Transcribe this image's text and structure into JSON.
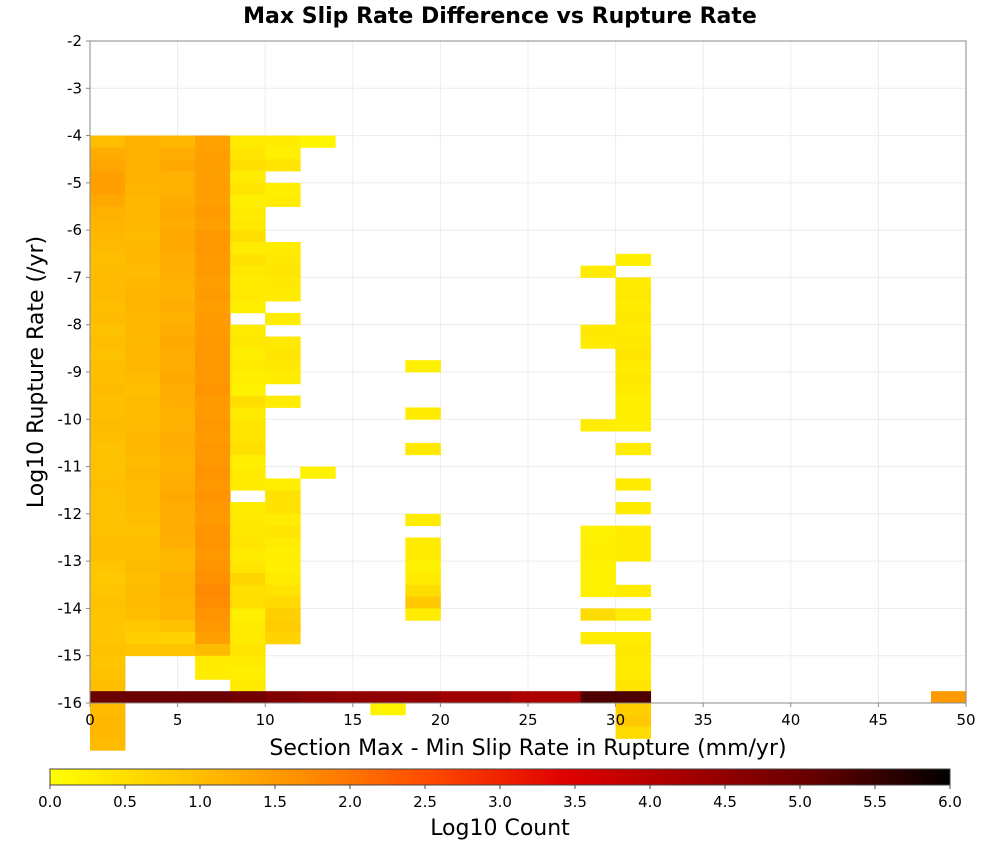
{
  "chart_data": {
    "type": "heatmap",
    "title": "Max Slip Rate Difference vs Rupture Rate",
    "xlabel": "Section Max - Min Slip Rate in Rupture (mm/yr)",
    "ylabel": "Log10 Rupture Rate (/yr)",
    "xlim": [
      0,
      50
    ],
    "ylim": [
      -16,
      -2
    ],
    "x_ticks": [
      "0",
      "5",
      "10",
      "15",
      "20",
      "25",
      "30",
      "35",
      "40",
      "45",
      "50"
    ],
    "y_ticks": [
      "-2",
      "-3",
      "-4",
      "-5",
      "-6",
      "-7",
      "-8",
      "-9",
      "-10",
      "-11",
      "-12",
      "-13",
      "-14",
      "-15",
      "-16"
    ],
    "grid": true,
    "x_bin_width": 2,
    "y_bin_height": 0.25,
    "colorbar": {
      "label": "Log10 Count",
      "range": [
        0,
        6
      ],
      "ticks": [
        "0.0",
        "0.5",
        "1.0",
        "1.5",
        "2.0",
        "2.5",
        "3.0",
        "3.5",
        "4.0",
        "4.5",
        "5.0",
        "5.5",
        "6.0"
      ],
      "colors": [
        "#ffff00",
        "#ffc800",
        "#ff8c00",
        "#ff4600",
        "#e00000",
        "#a00000",
        "#600000",
        "#000000"
      ]
    },
    "col_x": [
      0,
      2,
      4,
      6,
      8,
      10,
      12,
      16,
      18,
      28,
      30,
      48
    ],
    "col_values": [
      [
        1.0,
        1.25,
        1.35,
        1.45,
        1.45,
        1.3,
        1.2,
        1.15,
        1.1,
        1.05,
        1.0,
        1.05,
        1.05,
        1.05,
        1.0,
        1.05,
        0.95,
        1.0,
        0.95,
        1.0,
        1.0,
        1.05,
        1.0,
        1.0,
        1.05,
        1.0,
        0.95,
        0.95,
        0.95,
        1.0,
        0.95,
        0.95,
        0.95,
        0.95,
        1.0,
        1.0,
        0.9,
        0.85,
        0.9,
        0.95,
        0.9,
        0.9,
        0.9,
        0.95,
        0.9,
        0.95,
        1.0,
        1.0,
        1.05,
        1.1,
        1.1,
        1.05
      ],
      [
        1.2,
        1.2,
        1.2,
        1.2,
        1.15,
        1.1,
        1.1,
        1.1,
        1.05,
        1.1,
        1.1,
        1.05,
        1.1,
        1.15,
        1.15,
        1.1,
        1.1,
        1.1,
        1.1,
        1.1,
        1.05,
        1.0,
        1.05,
        1.05,
        1.05,
        1.1,
        1.1,
        1.05,
        1.1,
        1.05,
        1.05,
        1.05,
        1.0,
        0.95,
        1.0,
        1.0,
        1.05,
        1.0,
        1.05,
        1.05,
        1.0,
        0.85,
        0.75,
        0.9,
        null,
        null,
        null,
        null,
        null,
        null,
        null,
        null
      ],
      [
        1.1,
        1.25,
        1.3,
        1.2,
        1.2,
        1.25,
        1.3,
        1.25,
        1.3,
        1.3,
        1.25,
        1.25,
        1.2,
        1.2,
        1.25,
        1.2,
        1.25,
        1.3,
        1.25,
        1.25,
        1.3,
        1.25,
        1.25,
        1.2,
        1.2,
        1.25,
        1.25,
        1.2,
        1.2,
        1.25,
        1.3,
        1.25,
        1.25,
        1.25,
        1.2,
        1.1,
        1.1,
        1.2,
        1.2,
        1.15,
        1.15,
        0.95,
        0.7,
        0.9,
        null,
        null,
        null,
        null,
        null,
        null,
        null,
        null
      ],
      [
        1.4,
        1.45,
        1.45,
        1.45,
        1.45,
        1.45,
        1.5,
        1.45,
        1.55,
        1.55,
        1.5,
        1.5,
        1.45,
        1.5,
        1.45,
        1.5,
        1.5,
        1.55,
        1.55,
        1.55,
        1.55,
        1.6,
        1.5,
        1.5,
        1.55,
        1.5,
        1.55,
        1.55,
        1.6,
        1.55,
        1.6,
        1.55,
        1.5,
        1.6,
        1.6,
        1.55,
        1.6,
        1.65,
        1.75,
        1.7,
        1.6,
        1.55,
        1.45,
        1.05,
        0.3,
        0.3,
        null,
        null,
        null,
        null,
        null,
        null
      ],
      [
        0.3,
        0.4,
        0.5,
        0.3,
        0.4,
        0.25,
        0.3,
        0.35,
        0.5,
        0.3,
        0.45,
        0.35,
        0.3,
        0.35,
        0.25,
        null,
        0.3,
        0.35,
        0.25,
        0.3,
        0.25,
        0.2,
        0.5,
        0.3,
        0.4,
        0.4,
        0.5,
        0.25,
        0.3,
        0.3,
        null,
        0.3,
        0.35,
        0.35,
        0.4,
        0.3,
        0.4,
        0.65,
        0.5,
        0.5,
        0.25,
        0.3,
        0.3,
        0.4,
        0.3,
        0.25,
        0.3,
        null,
        null,
        null,
        null,
        null
      ],
      [
        0.3,
        0.25,
        0.4,
        null,
        0.25,
        0.3,
        null,
        null,
        null,
        0.3,
        0.35,
        0.4,
        0.35,
        0.3,
        null,
        0.3,
        null,
        0.35,
        0.4,
        0.35,
        0.3,
        null,
        0.3,
        null,
        null,
        null,
        null,
        null,
        null,
        0.25,
        0.45,
        0.45,
        0.3,
        0.4,
        0.3,
        0.25,
        0.25,
        0.3,
        0.45,
        0.6,
        0.75,
        0.8,
        0.7,
        null,
        null,
        null,
        null,
        null,
        null,
        null,
        null,
        null
      ],
      [
        0.15,
        null,
        null,
        null,
        null,
        null,
        null,
        null,
        null,
        null,
        null,
        null,
        null,
        null,
        null,
        null,
        null,
        null,
        null,
        null,
        null,
        null,
        null,
        null,
        null,
        null,
        null,
        null,
        0.2,
        null,
        null,
        null,
        null,
        null,
        null,
        null,
        null,
        null,
        null,
        null,
        null,
        null,
        null,
        null,
        null,
        null,
        null,
        null,
        null,
        null,
        null,
        null
      ],
      [
        null,
        null,
        null,
        null,
        null,
        null,
        null,
        null,
        null,
        null,
        null,
        null,
        null,
        null,
        null,
        null,
        null,
        null,
        null,
        null,
        null,
        null,
        null,
        null,
        null,
        null,
        null,
        null,
        null,
        null,
        null,
        null,
        null,
        null,
        null,
        null,
        null,
        null,
        null,
        null,
        null,
        null,
        null,
        null,
        null,
        null,
        null,
        null,
        0.15,
        null,
        null,
        null
      ],
      [
        null,
        null,
        null,
        null,
        null,
        null,
        null,
        null,
        null,
        null,
        null,
        null,
        null,
        null,
        null,
        null,
        null,
        null,
        null,
        0.25,
        null,
        null,
        null,
        0.3,
        null,
        null,
        0.35,
        null,
        null,
        null,
        null,
        null,
        0.3,
        null,
        0.3,
        0.3,
        0.2,
        0.3,
        0.55,
        0.85,
        0.3,
        null,
        null,
        null,
        null,
        null,
        null,
        null,
        null,
        null,
        null,
        null
      ],
      [
        null,
        null,
        null,
        null,
        null,
        null,
        null,
        null,
        null,
        null,
        null,
        0.3,
        null,
        null,
        null,
        null,
        0.35,
        0.3,
        null,
        null,
        null,
        null,
        null,
        null,
        0.3,
        null,
        null,
        null,
        null,
        null,
        null,
        null,
        null,
        0.2,
        0.25,
        0.25,
        0.2,
        0.2,
        0.2,
        null,
        0.55,
        null,
        0.3,
        null,
        null,
        null,
        null,
        null,
        null,
        null,
        null,
        null
      ],
      [
        null,
        null,
        null,
        null,
        null,
        null,
        null,
        null,
        null,
        null,
        0.25,
        null,
        0.3,
        0.35,
        0.3,
        0.35,
        0.3,
        0.35,
        0.4,
        0.3,
        0.35,
        0.3,
        0.25,
        0.25,
        0.25,
        null,
        0.3,
        null,
        null,
        0.3,
        null,
        0.3,
        null,
        0.3,
        0.3,
        0.3,
        null,
        null,
        0.3,
        null,
        0.3,
        null,
        0.3,
        0.35,
        0.3,
        0.3,
        0.4,
        0.75,
        0.75,
        0.85,
        0.55,
        null
      ],
      [
        null,
        null,
        null,
        null,
        null,
        null,
        null,
        null,
        null,
        null,
        null,
        null,
        null,
        null,
        null,
        null,
        null,
        null,
        null,
        null,
        null,
        null,
        null,
        null,
        null,
        null,
        null,
        null,
        null,
        null,
        null,
        null,
        null,
        null,
        null,
        null,
        null,
        null,
        null,
        null,
        null,
        null,
        null,
        null,
        null,
        null,
        null,
        null,
        null,
        null,
        null,
        null
      ]
    ],
    "bottom_row": {
      "y": -16,
      "x": [
        0,
        2,
        4,
        6,
        8,
        10,
        12,
        14,
        16,
        18,
        20,
        22,
        24,
        26,
        28,
        30,
        48
      ],
      "values": [
        5.0,
        5.0,
        5.0,
        5.0,
        4.9,
        4.7,
        4.6,
        4.5,
        4.5,
        4.5,
        4.3,
        4.3,
        4.1,
        4.1,
        5.3,
        5.3,
        1.5
      ]
    }
  }
}
